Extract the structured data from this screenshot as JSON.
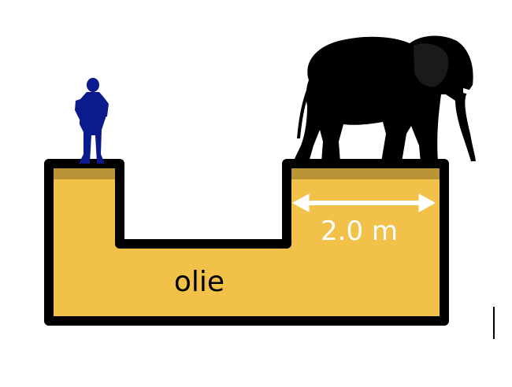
{
  "labels": {
    "fluid": "olie",
    "width": "2.0 m"
  },
  "colors": {
    "fluid": "#f2c14a",
    "platform_top": "#bb9437",
    "walls": "#000000",
    "person": "#0b1a8c",
    "elephant": "#000000",
    "width_label": "#ffffff",
    "fluid_label": "#000000"
  },
  "icons": {
    "person": "person-silhouette-icon",
    "elephant": "elephant-silhouette-icon",
    "arrow": "double-arrow-icon"
  }
}
